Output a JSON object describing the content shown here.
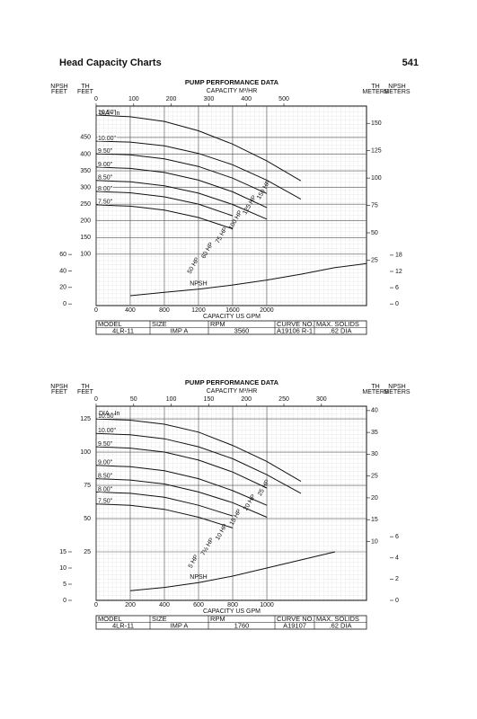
{
  "header": {
    "title": "Head Capacity Charts",
    "page": "541"
  },
  "chart_data": [
    {
      "type": "line",
      "title": "PUMP PERFORMANCE DATA",
      "x2label": "CAPACITY M³/HR",
      "xlabel": "CAPACITY US GPM",
      "npsh_feet_label": [
        "NPSH",
        "FEET"
      ],
      "th_feet_label": [
        "TH",
        "FEET"
      ],
      "th_meters_label": [
        "TH",
        "METERS"
      ],
      "npsh_meters_label": [
        "NPSH",
        "METERS"
      ],
      "dia_label": "DIA - In",
      "grid": true,
      "xlim": [
        0,
        3170
      ],
      "xticks": [
        0,
        400,
        800,
        1200,
        1600,
        2000
      ],
      "x2lim": [
        0,
        720
      ],
      "x2ticks": [
        0,
        100,
        200,
        300,
        400,
        500
      ],
      "ylim": [
        -54,
        544
      ],
      "yticks": [
        100,
        150,
        200,
        250,
        300,
        350,
        400,
        450
      ],
      "y2lim": [
        -2,
        240
      ],
      "y2ticks": [
        0,
        20,
        40,
        60
      ],
      "y3lim": [
        -16.5,
        165.8
      ],
      "y3ticks": [
        25,
        50,
        75,
        100,
        125,
        150
      ],
      "y4lim": [
        -0.6,
        73
      ],
      "y4ticks": [
        0,
        6,
        12,
        18
      ],
      "series": [
        {
          "name": "10.50\"",
          "color": "#111",
          "x": [
            0,
            400,
            800,
            1200,
            1600,
            2000,
            2400
          ],
          "values": [
            517,
            512,
            498,
            470,
            430,
            380,
            320
          ]
        },
        {
          "name": "10.00\"",
          "color": "#111",
          "x": [
            0,
            400,
            800,
            1200,
            1600,
            2000,
            2400
          ],
          "values": [
            439,
            436,
            425,
            402,
            368,
            322,
            265
          ]
        },
        {
          "name": "9.50\"",
          "color": "#111",
          "x": [
            0,
            400,
            800,
            1200,
            1600,
            2000
          ],
          "values": [
            401,
            398,
            386,
            363,
            328,
            282
          ]
        },
        {
          "name": "9.00\"",
          "color": "#111",
          "x": [
            0,
            400,
            800,
            1200,
            1600,
            2000
          ],
          "values": [
            361,
            357,
            345,
            322,
            287,
            240
          ]
        },
        {
          "name": "8.50\"",
          "color": "#111",
          "x": [
            0,
            400,
            800,
            1200,
            1600,
            2000
          ],
          "values": [
            321,
            317,
            305,
            283,
            249,
            205
          ]
        },
        {
          "name": "8.00\"",
          "color": "#111",
          "x": [
            0,
            400,
            800,
            1200,
            1600
          ],
          "values": [
            288,
            284,
            272,
            250,
            215
          ]
        },
        {
          "name": "7.50\"",
          "color": "#111",
          "x": [
            0,
            400,
            800,
            1200,
            1600
          ],
          "values": [
            248,
            244,
            232,
            210,
            176
          ]
        },
        {
          "name": "NPSH",
          "color": "#111",
          "axis": "y2",
          "x": [
            400,
            800,
            1200,
            1600,
            2000,
            2400,
            2800,
            3170
          ],
          "values": [
            10,
            14,
            18,
            23,
            29,
            36,
            44,
            49
          ]
        }
      ],
      "annotations": [
        "50 HP",
        "60 HP",
        "75 HP",
        "100 HP",
        "125 HP",
        "150 HP"
      ],
      "table": {
        "header": [
          "MODEL",
          "SIZE",
          "RPM",
          "CURVE NO.",
          "MAX. SOLIDS"
        ],
        "row": [
          "4LR-11",
          "IMP A",
          "3560",
          "A19106 R-1",
          ".62 DIA"
        ]
      }
    },
    {
      "type": "line",
      "title": "PUMP PERFORMANCE DATA",
      "x2label": "CAPACITY M³/HR",
      "xlabel": "CAPACITY US GPM",
      "npsh_feet_label": [
        "NPSH",
        "FEET"
      ],
      "th_feet_label": [
        "TH",
        "FEET"
      ],
      "th_meters_label": [
        "TH",
        "METERS"
      ],
      "npsh_meters_label": [
        "NPSH",
        "METERS"
      ],
      "dia_label": "DIA - In",
      "grid": true,
      "xlim": [
        0,
        1584
      ],
      "xticks": [
        0,
        200,
        400,
        600,
        800,
        1000
      ],
      "x2lim": [
        0,
        360
      ],
      "x2ticks": [
        0,
        50,
        100,
        150,
        200,
        250,
        300
      ],
      "ylim": [
        -11.5,
        134.5
      ],
      "yticks": [
        25,
        50,
        75,
        100,
        125
      ],
      "y2lim": [
        0,
        60
      ],
      "y2ticks": [
        0,
        5,
        10,
        15
      ],
      "y3lim": [
        -3.5,
        41
      ],
      "y3ticks": [
        10,
        15,
        20,
        25,
        30,
        35,
        40
      ],
      "y4lim": [
        0,
        18.3
      ],
      "y4ticks": [
        0,
        2,
        4,
        6
      ],
      "series": [
        {
          "name": "10.50\"",
          "color": "#111",
          "x": [
            0,
            200,
            400,
            600,
            800,
            1000,
            1200
          ],
          "values": [
            125,
            124,
            121,
            115,
            105,
            93,
            78
          ]
        },
        {
          "name": "10.00\"",
          "color": "#111",
          "x": [
            0,
            200,
            400,
            600,
            800,
            1000,
            1200
          ],
          "values": [
            114,
            113,
            110,
            104,
            95,
            83,
            69
          ]
        },
        {
          "name": "9.50\"",
          "color": "#111",
          "x": [
            0,
            200,
            400,
            600,
            800,
            1000
          ],
          "values": [
            104,
            103,
            100,
            94,
            85,
            73
          ]
        },
        {
          "name": "9.00\"",
          "color": "#111",
          "x": [
            0,
            200,
            400,
            600,
            800,
            1000
          ],
          "values": [
            90,
            89,
            86,
            80,
            71,
            60
          ]
        },
        {
          "name": "8.50\"",
          "color": "#111",
          "x": [
            0,
            200,
            400,
            600,
            800,
            1000
          ],
          "values": [
            80,
            79,
            76,
            70,
            62,
            51
          ]
        },
        {
          "name": "8.00\"",
          "color": "#111",
          "x": [
            0,
            200,
            400,
            600,
            800
          ],
          "values": [
            70,
            69,
            66,
            60,
            52
          ]
        },
        {
          "name": "7.50\"",
          "color": "#111",
          "x": [
            0,
            200,
            400,
            600,
            800
          ],
          "values": [
            61,
            60,
            57,
            51,
            43
          ]
        },
        {
          "name": "NPSH",
          "color": "#111",
          "axis": "y2",
          "x": [
            200,
            400,
            600,
            800,
            1000,
            1200,
            1400
          ],
          "values": [
            3,
            4,
            5.5,
            7.5,
            10,
            12.5,
            15
          ]
        }
      ],
      "annotations": [
        "5 HP",
        "7½ HP",
        "10 HP",
        "15 HP",
        "20 HP",
        "25 HP"
      ],
      "table": {
        "header": [
          "MODEL",
          "SIZE",
          "RPM",
          "CURVE NO.",
          "MAX. SOLIDS"
        ],
        "row": [
          "4LR-11",
          "IMP A",
          "1760",
          "A19107",
          ".62 DIA"
        ]
      }
    }
  ]
}
